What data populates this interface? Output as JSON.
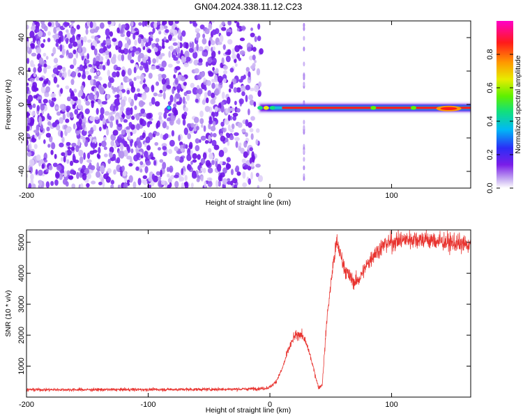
{
  "title": "GN04.2024.338.11.12.C23",
  "chart_data": [
    {
      "type": "heatmap",
      "xlabel": "Height of straight line (km)",
      "ylabel": "Frequency (Hz)",
      "xlim": [
        -200,
        165
      ],
      "ylim": [
        -50,
        50
      ],
      "x_ticks": [
        "-200",
        "-100",
        "0",
        "100"
      ],
      "x_tick_values": [
        -200,
        -100,
        0,
        100
      ],
      "y_ticks": [
        "-40",
        "-20",
        "0",
        "20",
        "40"
      ],
      "y_tick_values": [
        -40,
        -20,
        0,
        20,
        40
      ],
      "grid": false,
      "colormap": "rainbow (violet → blue → cyan → green → yellow → orange → red)",
      "colorbar": {
        "label": "Normalized spectral amplitude",
        "range": [
          0,
          1
        ],
        "ticks": [
          "0.0",
          "0.2",
          "0.4",
          "0.6",
          "0.8"
        ],
        "tick_values": [
          0.0,
          0.2,
          0.4,
          0.6,
          0.8
        ]
      },
      "features": [
        {
          "description": "scattered low-amplitude noise",
          "x_range": [
            -200,
            -15
          ],
          "freq_range": [
            -50,
            50
          ],
          "amplitude": 0.1
        },
        {
          "description": "narrow band near 0 Hz",
          "x_range": [
            -15,
            165
          ],
          "freq": -2,
          "amplitude_range": [
            0.5,
            1.0
          ]
        },
        {
          "description": "vertical stripe",
          "x": 28,
          "freq_range": [
            -50,
            50
          ],
          "amplitude": 0.1
        }
      ]
    },
    {
      "type": "line",
      "xlabel": "Height of straight line (km)",
      "ylabel": "SNR (10 * v/v)",
      "xlim": [
        -200,
        165
      ],
      "ylim": [
        0,
        5400
      ],
      "x_ticks": [
        "-200",
        "-100",
        "0",
        "100"
      ],
      "x_tick_values": [
        -200,
        -100,
        0,
        100
      ],
      "y_ticks": [
        "1000",
        "2000",
        "3000",
        "4000",
        "5000"
      ],
      "y_tick_values": [
        1000,
        2000,
        3000,
        4000,
        5000
      ],
      "grid": false,
      "line_color": "#e8332f",
      "series": [
        {
          "x": [
            -200,
            -150,
            -100,
            -50,
            -20,
            -5,
            0,
            5,
            10,
            15,
            20,
            25,
            28,
            32,
            36,
            40,
            43,
            47,
            52,
            55,
            58,
            62,
            66,
            70,
            74,
            78,
            85,
            95,
            105,
            115,
            125,
            135,
            145,
            155,
            165
          ],
          "values": [
            240,
            240,
            245,
            250,
            260,
            280,
            320,
            500,
            900,
            1500,
            1950,
            2050,
            1900,
            1500,
            900,
            300,
            400,
            2600,
            4300,
            5000,
            4600,
            4100,
            3850,
            3700,
            3850,
            4150,
            4600,
            4950,
            5050,
            5100,
            5100,
            5050,
            5000,
            4950,
            4900
          ]
        }
      ]
    }
  ]
}
